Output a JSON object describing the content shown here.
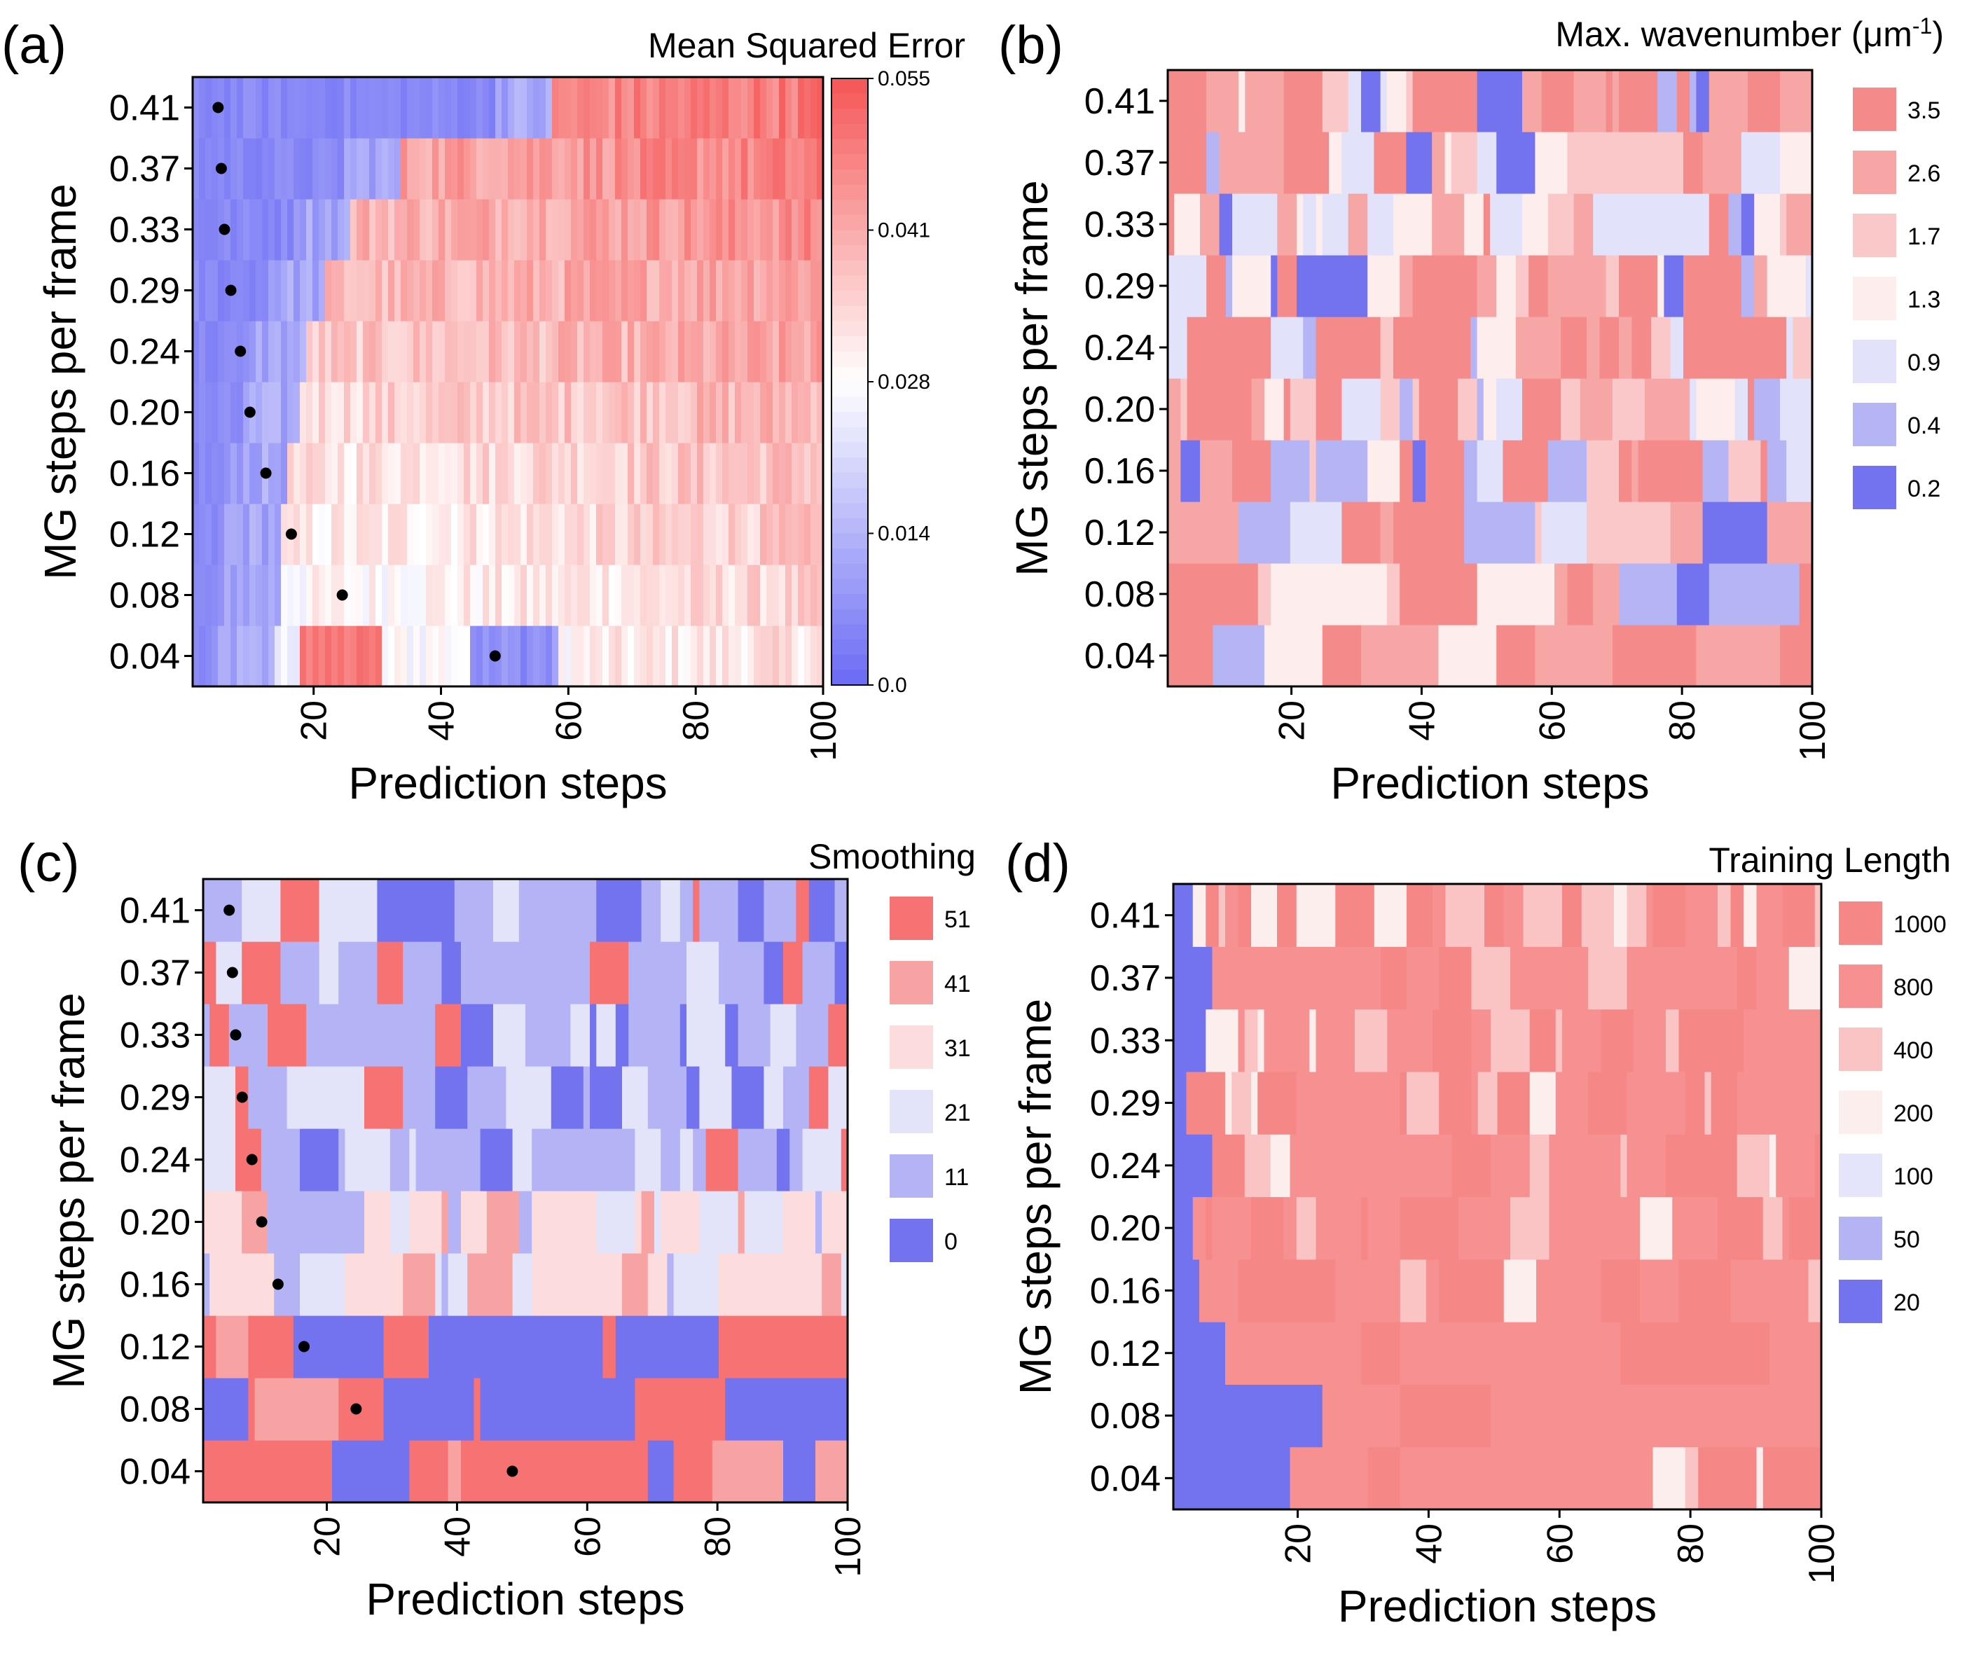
{
  "chart_data": [
    {
      "panel": "(a)",
      "type": "heatmap",
      "xlabel": "Prediction steps",
      "ylabel": "MG steps per frame",
      "x_range": [
        1,
        100
      ],
      "x_ticks": [
        "20",
        "40",
        "60",
        "80",
        "100"
      ],
      "y_categories": [
        "0.04",
        "0.08",
        "0.12",
        "0.16",
        "0.20",
        "0.24",
        "0.29",
        "0.33",
        "0.37",
        "0.41"
      ],
      "colorbar": {
        "title": "Mean Squared Error",
        "type": "continuous",
        "range": [
          0.0,
          0.055
        ],
        "ticks": [
          "0.0",
          "0.014",
          "0.028",
          "0.041",
          "0.055"
        ],
        "low_color": "#6E6EF5",
        "mid_color": "#FFFFFF",
        "high_color": "#F55A5A"
      },
      "markers": [
        {
          "y": "0.41",
          "x": 5
        },
        {
          "y": "0.37",
          "x": 5.5
        },
        {
          "y": "0.33",
          "x": 6
        },
        {
          "y": "0.29",
          "x": 7
        },
        {
          "y": "0.24",
          "x": 8.5
        },
        {
          "y": "0.20",
          "x": 10
        },
        {
          "y": "0.16",
          "x": 12.5
        },
        {
          "y": "0.12",
          "x": 16.5
        },
        {
          "y": "0.08",
          "x": 24.5
        },
        {
          "y": "0.04",
          "x": 48.5
        }
      ]
    },
    {
      "panel": "(b)",
      "type": "heatmap",
      "xlabel": "Prediction steps",
      "ylabel": "MG steps per frame",
      "x_range": [
        1,
        100
      ],
      "x_ticks": [
        "20",
        "40",
        "60",
        "80",
        "100"
      ],
      "y_categories": [
        "0.04",
        "0.08",
        "0.12",
        "0.16",
        "0.20",
        "0.24",
        "0.29",
        "0.33",
        "0.37",
        "0.41"
      ],
      "colorbar": {
        "title": "Max. wavenumber (μm",
        "title_sup": "-1",
        "title_end": ")",
        "type": "discrete",
        "levels": [
          "3.5",
          "2.6",
          "1.7",
          "1.3",
          "0.9",
          "0.4",
          "0.2"
        ],
        "colors": [
          "#F58A8A",
          "#F7A6A6",
          "#FAC8C8",
          "#FDEDED",
          "#E2E2FA",
          "#B5B5F5",
          "#7373F0"
        ]
      }
    },
    {
      "panel": "(c)",
      "type": "heatmap",
      "xlabel": "Prediction steps",
      "ylabel": "MG steps per frame",
      "x_range": [
        1,
        100
      ],
      "x_ticks": [
        "20",
        "40",
        "60",
        "80",
        "100"
      ],
      "y_categories": [
        "0.04",
        "0.08",
        "0.12",
        "0.16",
        "0.20",
        "0.24",
        "0.29",
        "0.33",
        "0.37",
        "0.41"
      ],
      "colorbar": {
        "title": "Smoothing",
        "type": "discrete",
        "levels": [
          "51",
          "41",
          "31",
          "21",
          "11",
          "0"
        ],
        "colors": [
          "#F77272",
          "#F7A3A3",
          "#FCDCDC",
          "#E3E3FA",
          "#B3B3F5",
          "#7373F0"
        ]
      },
      "markers": [
        {
          "y": "0.41",
          "x": 5
        },
        {
          "y": "0.37",
          "x": 5.5
        },
        {
          "y": "0.33",
          "x": 6
        },
        {
          "y": "0.29",
          "x": 7
        },
        {
          "y": "0.24",
          "x": 8.5
        },
        {
          "y": "0.20",
          "x": 10
        },
        {
          "y": "0.16",
          "x": 12.5
        },
        {
          "y": "0.12",
          "x": 16.5
        },
        {
          "y": "0.08",
          "x": 24.5
        },
        {
          "y": "0.04",
          "x": 48.5
        }
      ]
    },
    {
      "panel": "(d)",
      "type": "heatmap",
      "xlabel": "Prediction steps",
      "ylabel": "MG steps per frame",
      "x_range": [
        1,
        100
      ],
      "x_ticks": [
        "20",
        "40",
        "60",
        "80",
        "100"
      ],
      "y_categories": [
        "0.04",
        "0.08",
        "0.12",
        "0.16",
        "0.20",
        "0.24",
        "0.29",
        "0.33",
        "0.37",
        "0.41"
      ],
      "colorbar": {
        "title": "Training Length",
        "type": "discrete",
        "levels": [
          "1000",
          "800",
          "400",
          "200",
          "100",
          "50",
          "20"
        ],
        "colors": [
          "#F58787",
          "#F79191",
          "#FAC4C4",
          "#FDEEEE",
          "#E4E4FA",
          "#B4B4F5",
          "#7373F0"
        ]
      }
    }
  ]
}
